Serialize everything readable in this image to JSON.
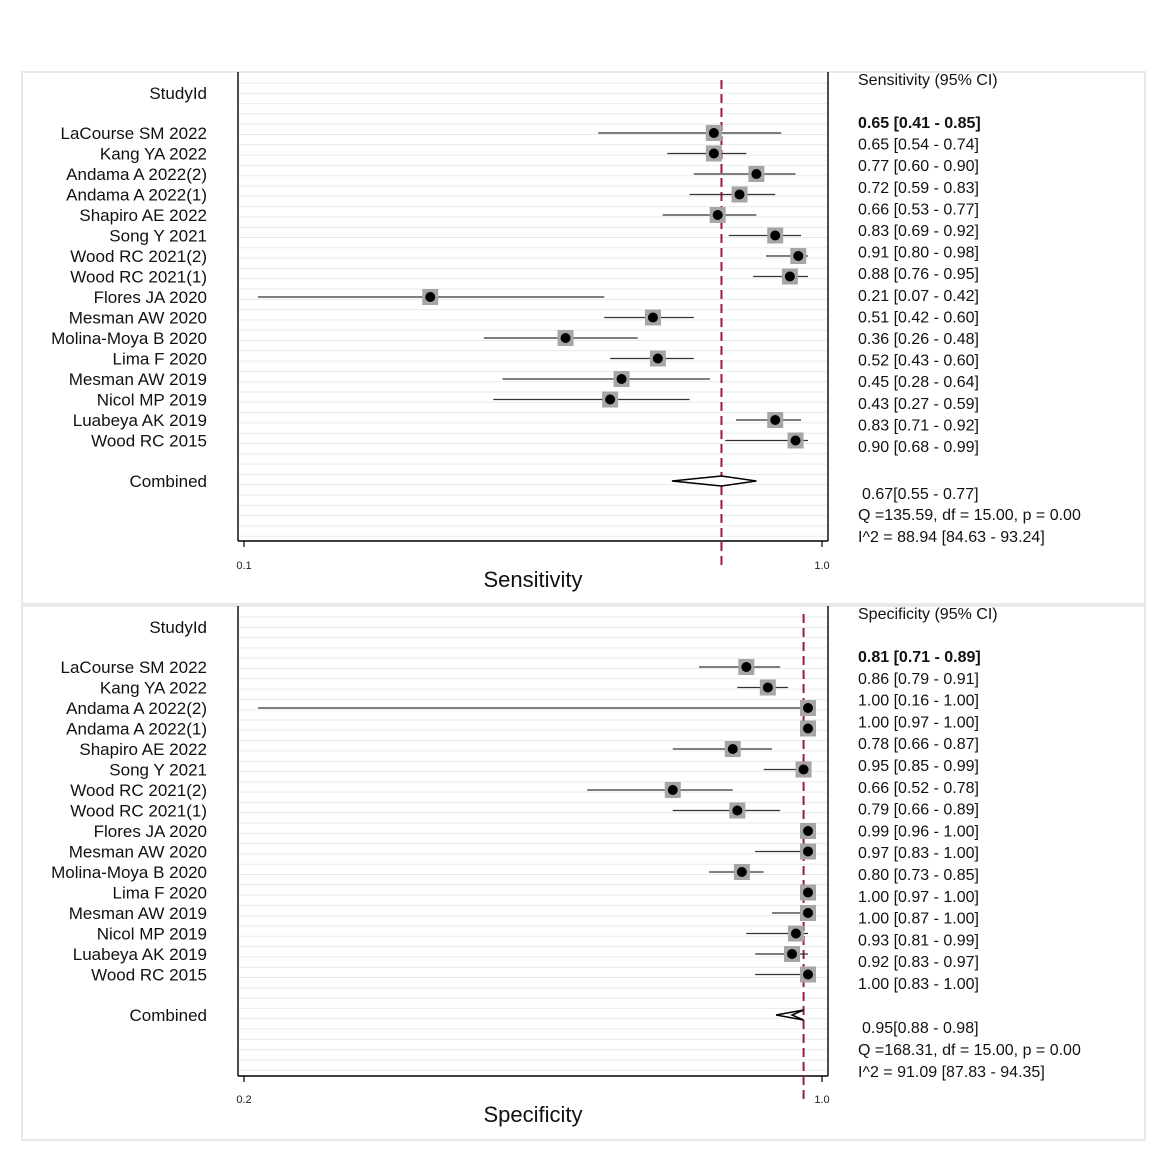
{
  "chart_data": [
    {
      "type": "forest",
      "scale": "log",
      "title": "Sensitivity",
      "xlabel": "Sensitivity",
      "column_header": "StudyId",
      "ci_header": "Sensitivity (95% CI)",
      "xlim": [
        0.1,
        1.0
      ],
      "xticks": [
        "0.1",
        "1.0"
      ],
      "reference_line": 0.67,
      "studies": [
        {
          "label": "LaCourse SM 2022",
          "est": 0.65,
          "lo": 0.41,
          "hi": 0.85,
          "ci_text": "0.65 [0.41 - 0.85]"
        },
        {
          "label": "Kang YA 2022",
          "est": 0.65,
          "lo": 0.54,
          "hi": 0.74,
          "ci_text": "0.65 [0.54 - 0.74]"
        },
        {
          "label": "Andama A 2022(2)",
          "est": 0.77,
          "lo": 0.6,
          "hi": 0.9,
          "ci_text": "0.77 [0.60 - 0.90]"
        },
        {
          "label": "Andama A 2022(1)",
          "est": 0.72,
          "lo": 0.59,
          "hi": 0.83,
          "ci_text": "0.72 [0.59 - 0.83]"
        },
        {
          "label": "Shapiro AE 2022",
          "est": 0.66,
          "lo": 0.53,
          "hi": 0.77,
          "ci_text": "0.66 [0.53 - 0.77]"
        },
        {
          "label": "Song Y 2021",
          "est": 0.83,
          "lo": 0.69,
          "hi": 0.92,
          "ci_text": "0.83 [0.69 - 0.92]"
        },
        {
          "label": "Wood RC 2021(2)",
          "est": 0.91,
          "lo": 0.8,
          "hi": 0.98,
          "ci_text": "0.91 [0.80 - 0.98]"
        },
        {
          "label": "Wood RC 2021(1)",
          "est": 0.88,
          "lo": 0.76,
          "hi": 0.95,
          "ci_text": "0.88 [0.76 - 0.95]"
        },
        {
          "label": "Flores JA 2020",
          "est": 0.21,
          "lo": 0.07,
          "hi": 0.42,
          "ci_text": "0.21 [0.07 - 0.42]"
        },
        {
          "label": "Mesman AW 2020",
          "est": 0.51,
          "lo": 0.42,
          "hi": 0.6,
          "ci_text": "0.51 [0.42 - 0.60]"
        },
        {
          "label": "Molina-Moya B 2020",
          "est": 0.36,
          "lo": 0.26,
          "hi": 0.48,
          "ci_text": "0.36 [0.26 - 0.48]"
        },
        {
          "label": "Lima F 2020",
          "est": 0.52,
          "lo": 0.43,
          "hi": 0.6,
          "ci_text": "0.52 [0.43 - 0.60]"
        },
        {
          "label": "Mesman AW 2019",
          "est": 0.45,
          "lo": 0.28,
          "hi": 0.64,
          "ci_text": "0.45 [0.28 - 0.64]"
        },
        {
          "label": "Nicol MP 2019",
          "est": 0.43,
          "lo": 0.27,
          "hi": 0.59,
          "ci_text": "0.43 [0.27 - 0.59]"
        },
        {
          "label": "Luabeya AK 2019",
          "est": 0.83,
          "lo": 0.71,
          "hi": 0.92,
          "ci_text": "0.83 [0.71 - 0.92]"
        },
        {
          "label": "Wood RC 2015",
          "est": 0.9,
          "lo": 0.68,
          "hi": 0.99,
          "ci_text": "0.90 [0.68 - 0.99]"
        }
      ],
      "combined": {
        "label": "Combined",
        "est": 0.67,
        "lo": 0.55,
        "hi": 0.77,
        "ci_text": "0.67[0.55 - 0.77]"
      },
      "heterogeneity_q": "Q =135.59, df = 15.00, p =  0.00",
      "heterogeneity_i2": "I^2 = 88.94 [84.63 - 93.24]"
    },
    {
      "type": "forest",
      "scale": "log",
      "title": "Specificity",
      "xlabel": "Specificity",
      "column_header": "StudyId",
      "ci_header": "Specificity (95% CI)",
      "xlim": [
        0.2,
        1.0
      ],
      "xticks": [
        "0.2",
        "1.0"
      ],
      "reference_line": 0.95,
      "studies": [
        {
          "label": "LaCourse SM 2022",
          "est": 0.81,
          "lo": 0.71,
          "hi": 0.89,
          "ci_text": "0.81 [0.71 - 0.89]"
        },
        {
          "label": "Kang YA 2022",
          "est": 0.86,
          "lo": 0.79,
          "hi": 0.91,
          "ci_text": "0.86 [0.79 - 0.91]"
        },
        {
          "label": "Andama A 2022(2)",
          "est": 1.0,
          "lo": 0.16,
          "hi": 1.0,
          "ci_text": "1.00 [0.16 - 1.00]"
        },
        {
          "label": "Andama A 2022(1)",
          "est": 1.0,
          "lo": 0.97,
          "hi": 1.0,
          "ci_text": "1.00 [0.97 - 1.00]"
        },
        {
          "label": "Shapiro AE 2022",
          "est": 0.78,
          "lo": 0.66,
          "hi": 0.87,
          "ci_text": "0.78 [0.66 - 0.87]"
        },
        {
          "label": "Song Y 2021",
          "est": 0.95,
          "lo": 0.85,
          "hi": 0.99,
          "ci_text": "0.95 [0.85 - 0.99]"
        },
        {
          "label": "Wood RC 2021(2)",
          "est": 0.66,
          "lo": 0.52,
          "hi": 0.78,
          "ci_text": "0.66 [0.52 - 0.78]"
        },
        {
          "label": "Wood RC 2021(1)",
          "est": 0.79,
          "lo": 0.66,
          "hi": 0.89,
          "ci_text": "0.79 [0.66 - 0.89]"
        },
        {
          "label": "Flores JA 2020",
          "est": 0.99,
          "lo": 0.96,
          "hi": 1.0,
          "ci_text": "0.99 [0.96 - 1.00]"
        },
        {
          "label": "Mesman AW 2020",
          "est": 0.97,
          "lo": 0.83,
          "hi": 1.0,
          "ci_text": "0.97 [0.83 - 1.00]"
        },
        {
          "label": "Molina-Moya B 2020",
          "est": 0.8,
          "lo": 0.73,
          "hi": 0.85,
          "ci_text": "0.80 [0.73 - 0.85]"
        },
        {
          "label": "Lima F 2020",
          "est": 1.0,
          "lo": 0.97,
          "hi": 1.0,
          "ci_text": "1.00 [0.97 - 1.00]"
        },
        {
          "label": "Mesman AW 2019",
          "est": 1.0,
          "lo": 0.87,
          "hi": 1.0,
          "ci_text": "1.00 [0.87 - 1.00]"
        },
        {
          "label": "Nicol MP 2019",
          "est": 0.93,
          "lo": 0.81,
          "hi": 0.99,
          "ci_text": "0.93 [0.81 - 0.99]"
        },
        {
          "label": "Luabeya AK 2019",
          "est": 0.92,
          "lo": 0.83,
          "hi": 0.97,
          "ci_text": "0.92 [0.83 - 0.97]"
        },
        {
          "label": "Wood RC 2015",
          "est": 1.0,
          "lo": 0.83,
          "hi": 1.0,
          "ci_text": "1.00 [0.83 - 1.00]"
        }
      ],
      "combined": {
        "label": "Combined",
        "est": 0.95,
        "lo": 0.88,
        "hi": 0.98,
        "ci_text": "0.95[0.88 - 0.98]"
      },
      "heterogeneity_q": "Q =168.31, df = 15.00, p =  0.00",
      "heterogeneity_i2": "I^2 = 91.09 [87.83 - 94.35]"
    }
  ],
  "colors": {
    "reference_line": "#9b1b3a",
    "marker_box": "#a6a6a6",
    "marker_dot": "#000000",
    "ci_line": "#333333",
    "grid": "#e6ebee",
    "panel_border": "#dde3e6"
  }
}
